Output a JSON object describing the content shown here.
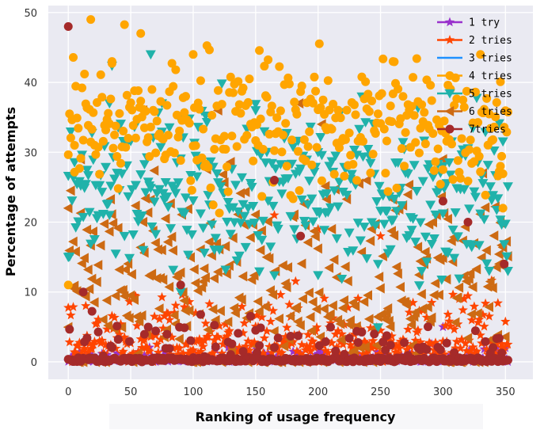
{
  "chart_data": {
    "type": "scatter",
    "xlabel": "Ranking of usage frequency",
    "ylabel": "Percentage of attempts",
    "xlim": [
      -16,
      372
    ],
    "ylim": [
      -2.5,
      51
    ],
    "xticks": [
      0,
      50,
      100,
      150,
      200,
      250,
      300,
      350
    ],
    "yticks": [
      0,
      10,
      20,
      30,
      40,
      50
    ],
    "grid": true,
    "background": "#eaeaf2",
    "legend_position": "top-right",
    "n_points_per_series": 353,
    "series": [
      {
        "name": "1 try",
        "color": "#9932cc",
        "marker": "star",
        "pattern": "low",
        "mean": 0.3,
        "spread": 0.9,
        "sample_points": [
          [
            300,
            5
          ],
          [
            343,
            2
          ],
          [
            350,
            2
          ]
        ]
      },
      {
        "name": "2 tries",
        "color": "#ff4500",
        "marker": "star",
        "pattern": "lowmid",
        "mean": 4.5,
        "spread": 4.5,
        "sample_points": [
          [
            60,
            16
          ],
          [
            165,
            21
          ],
          [
            200,
            19
          ],
          [
            250,
            18
          ],
          [
            317,
            9
          ]
        ]
      },
      {
        "name": "3 tries",
        "color": "#1e90ff",
        "marker": "none",
        "pattern": "none",
        "mean": 0,
        "spread": 0,
        "sample_points": []
      },
      {
        "name": "4 tries",
        "color": "#ffa500",
        "marker": "circle",
        "pattern": "high",
        "mean": 34,
        "spread": 5,
        "sample_points": [
          [
            0,
            11
          ],
          [
            5,
            31
          ],
          [
            18,
            49
          ],
          [
            35,
            43
          ],
          [
            58,
            47
          ],
          [
            100,
            44
          ],
          [
            260,
            43
          ],
          [
            330,
            44
          ],
          [
            346,
            28
          ],
          [
            348,
            22
          ]
        ]
      },
      {
        "name": "5 tries",
        "color": "#20b2aa",
        "marker": "triangle-down",
        "pattern": "mid",
        "mean": 24,
        "spread": 6,
        "sample_points": [
          [
            0,
            15
          ],
          [
            33,
            37
          ],
          [
            66,
            44
          ],
          [
            75,
            37
          ],
          [
            90,
            10
          ],
          [
            150,
            36
          ],
          [
            200,
            30
          ],
          [
            248,
            14
          ],
          [
            300,
            28
          ],
          [
            352,
            13
          ]
        ]
      },
      {
        "name": "6 tries",
        "color": "#cd6a13",
        "marker": "triangle-left",
        "pattern": "broad",
        "mean": 12,
        "spread": 7.5,
        "sample_points": [
          [
            0,
            22
          ],
          [
            10,
            29
          ],
          [
            60,
            36
          ],
          [
            120,
            36
          ],
          [
            185,
            37
          ],
          [
            300,
            29
          ],
          [
            345,
            14
          ]
        ]
      },
      {
        "name": "7tries",
        "color": "#a52a2a",
        "marker": "circle",
        "pattern": "low",
        "mean": 2.5,
        "spread": 3,
        "sample_points": [
          [
            0,
            48
          ],
          [
            12,
            10
          ],
          [
            90,
            11
          ],
          [
            165,
            26
          ],
          [
            186,
            18
          ],
          [
            300,
            23
          ],
          [
            320,
            20
          ],
          [
            349,
            14
          ]
        ]
      }
    ]
  }
}
